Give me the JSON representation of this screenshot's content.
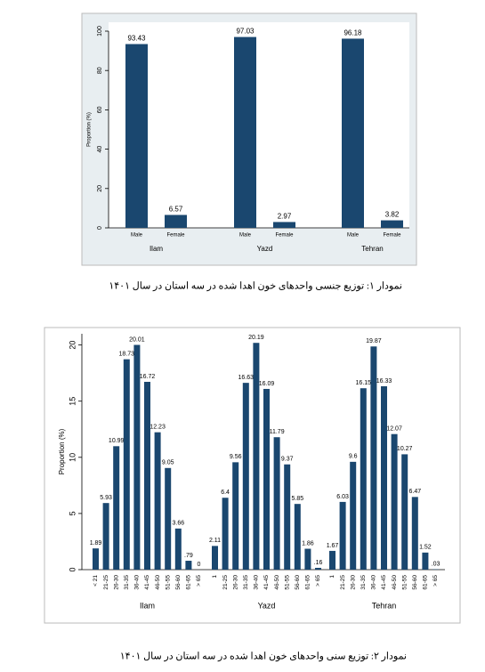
{
  "chart_data": [
    {
      "type": "bar",
      "y_label": "Proportion (%)",
      "color": "#1a476f",
      "ylim": [
        0,
        100
      ],
      "yticks": [
        0,
        20,
        40,
        60,
        80,
        100
      ],
      "groups": [
        {
          "name": "Ilam",
          "categories": [
            "Male",
            "Female"
          ],
          "values": [
            93.43,
            6.57
          ]
        },
        {
          "name": "Yazd",
          "categories": [
            "Male",
            "Female"
          ],
          "values": [
            97.03,
            2.97
          ]
        },
        {
          "name": "Tehran",
          "categories": [
            "Male",
            "Female"
          ],
          "values": [
            96.18,
            3.82
          ]
        }
      ],
      "caption": "نمودار ۱: توزیع جنسی واحدهای خون اهدا شده در سه استان در سال ۱۴۰۱"
    },
    {
      "type": "bar",
      "y_label": "Proportion (%)",
      "color": "#1a476f",
      "ylim": [
        0,
        21
      ],
      "yticks": [
        0,
        5,
        10,
        15,
        20
      ],
      "groups": [
        {
          "name": "Ilam",
          "categories": [
            "< 21",
            "21-25",
            "26-30",
            "31-35",
            "36-40",
            "41-45",
            "46-50",
            "51-55",
            "56-60",
            "61-65",
            "> 65"
          ],
          "values": [
            1.89,
            5.93,
            10.99,
            18.73,
            20.01,
            16.72,
            12.23,
            9.05,
            3.66,
            0.79,
            0
          ],
          "value_labels": [
            "1.89",
            "5.93",
            "10.99",
            "18.73",
            "20.01",
            "16.72",
            "12.23",
            "9.05",
            "3.66",
            ".79",
            "0"
          ]
        },
        {
          "name": "Yazd",
          "categories": [
            "1",
            "21-25",
            "26-30",
            "31-35",
            "36-40",
            "41-45",
            "46-50",
            "51-55",
            "56-60",
            "61-65",
            "> 65"
          ],
          "values": [
            2.11,
            6.4,
            9.56,
            16.63,
            20.19,
            16.09,
            11.79,
            9.37,
            5.85,
            1.86,
            0.16
          ],
          "value_labels": [
            "2.11",
            "6.4",
            "9.56",
            "16.63",
            "20.19",
            "16.09",
            "11.79",
            "9.37",
            "5.85",
            "1.86",
            ".16"
          ]
        },
        {
          "name": "Tehran",
          "categories": [
            "1",
            "21-25",
            "26-30",
            "31-35",
            "36-40",
            "41-45",
            "46-50",
            "51-55",
            "56-60",
            "61-65",
            "> 65"
          ],
          "values": [
            1.67,
            6.03,
            9.6,
            16.15,
            19.87,
            16.33,
            12.07,
            10.27,
            6.47,
            1.52,
            0.03
          ],
          "value_labels": [
            "1.67",
            "6.03",
            "9.6",
            "16.15",
            "19.87",
            "16.33",
            "12.07",
            "10.27",
            "6.47",
            "1.52",
            ".03"
          ]
        }
      ],
      "caption": "نمودار ۲: توزیع سنی واحدهای خون اهدا شده در سه استان در سال ۱۴۰۱"
    }
  ]
}
